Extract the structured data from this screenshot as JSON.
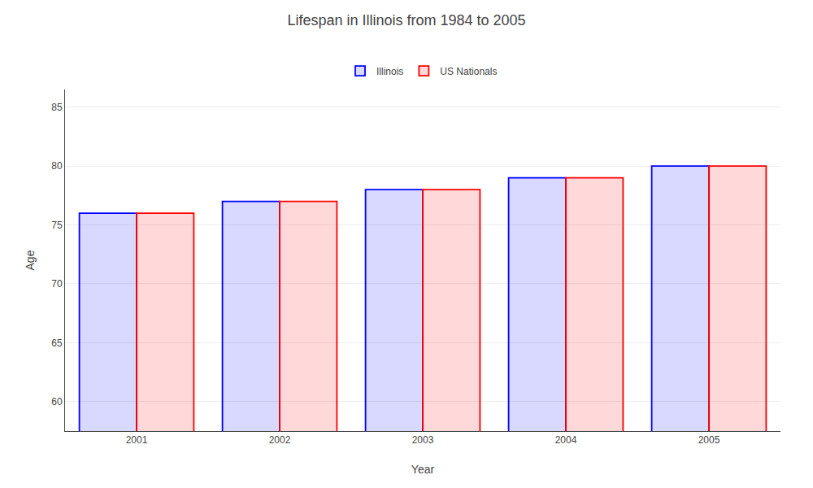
{
  "chart_data": {
    "type": "bar",
    "title": "Lifespan in Illinois from 1984 to 2005",
    "xlabel": "Year",
    "ylabel": "Age",
    "categories": [
      "2001",
      "2002",
      "2003",
      "2004",
      "2005"
    ],
    "series": [
      {
        "name": "Illinois",
        "color": "#0000ff",
        "values": [
          76,
          77,
          78,
          79,
          80
        ]
      },
      {
        "name": "US Nationals",
        "color": "#ff0000",
        "values": [
          76,
          77,
          78,
          79,
          80
        ]
      }
    ],
    "ylim": [
      57.5,
      86.5
    ],
    "yticks": [
      60,
      65,
      70,
      75,
      80,
      85
    ],
    "grid": true,
    "legend": "upper center"
  }
}
